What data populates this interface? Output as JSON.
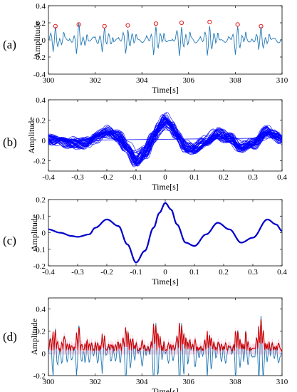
{
  "chart_data": [
    {
      "panel": "(a)",
      "type": "line",
      "ylabel": "Amplitude",
      "xlabel": "Time[s]",
      "xlim": [
        300,
        310
      ],
      "ylim": [
        -0.4,
        0.4
      ],
      "xticks": [
        300,
        302,
        304,
        306,
        308,
        310
      ],
      "yticks": [
        "-0.4",
        "-0.2",
        "0",
        "0.2",
        "0.4"
      ],
      "grid": false,
      "series": [
        {
          "kind": "signal",
          "color": "#1f77b4",
          "sample_rate_hz": 50
        },
        {
          "kind": "peak-markers",
          "color": "#e31a1c",
          "x": [
            300.3,
            301.3,
            302.4,
            303.4,
            304.6,
            305.7,
            306.9,
            308.1,
            309.1
          ],
          "y": [
            0.16,
            0.18,
            0.16,
            0.17,
            0.19,
            0.2,
            0.21,
            0.18,
            0.16
          ]
        }
      ]
    },
    {
      "panel": "(b)",
      "type": "line",
      "ylabel": "Amplitude",
      "xlabel": "Time[s]",
      "xlim": [
        -0.4,
        0.4
      ],
      "ylim": [
        -0.3,
        0.4
      ],
      "xticks": [
        "-0.4",
        "-0.3",
        "-0.2",
        "-0.1",
        "0",
        "0.1",
        "0.2",
        "0.3",
        "0.4"
      ],
      "yticks": [
        "-0.2",
        "0",
        "0.2",
        "0.4"
      ],
      "grid": false,
      "series": [
        {
          "kind": "overlaid-segments",
          "count": 45,
          "color": "#0000ff"
        }
      ]
    },
    {
      "panel": "(c)",
      "type": "line",
      "ylabel": "Amplitude",
      "xlabel": "Time[s]",
      "xlim": [
        -0.4,
        0.4
      ],
      "ylim": [
        -0.2,
        0.2
      ],
      "xticks": [
        "-0.4",
        "-0.3",
        "-0.2",
        "-0.1",
        "0",
        "0.1",
        "0.2",
        "0.3",
        "0.4"
      ],
      "yticks": [
        "-0.2",
        "-0.1",
        "0",
        "0.1",
        "0.2"
      ],
      "grid": false,
      "series": [
        {
          "kind": "template",
          "color": "#0000cc",
          "x": [
            -0.4,
            -0.36,
            -0.32,
            -0.3,
            -0.26,
            -0.24,
            -0.2,
            -0.16,
            -0.13,
            -0.1,
            -0.07,
            -0.04,
            -0.02,
            0.0,
            0.02,
            0.04,
            0.07,
            0.1,
            0.14,
            0.18,
            0.22,
            0.26,
            0.3,
            0.35,
            0.38,
            0.4
          ],
          "y": [
            0.02,
            0.0,
            -0.02,
            -0.025,
            -0.01,
            0.03,
            0.08,
            0.04,
            -0.07,
            -0.18,
            -0.11,
            0.03,
            0.12,
            0.18,
            0.14,
            0.05,
            -0.06,
            -0.08,
            -0.01,
            0.06,
            0.02,
            -0.06,
            -0.03,
            0.08,
            0.05,
            0.01
          ]
        }
      ]
    },
    {
      "panel": "(d)",
      "type": "line",
      "ylabel": "Amplitude",
      "xlabel": "Time[s]",
      "xlim": [
        300,
        310
      ],
      "ylim": [
        -0.2,
        0.5
      ],
      "xticks": [
        300,
        302,
        304,
        306,
        308,
        310
      ],
      "yticks": [
        "-0.2",
        "0",
        "0.2",
        "0.4"
      ],
      "grid": false,
      "series": [
        {
          "kind": "signal",
          "color": "#1f77b4"
        },
        {
          "kind": "envelope",
          "color": "#cc0000"
        },
        {
          "kind": "band",
          "color": "#f4b6d2"
        }
      ]
    }
  ]
}
